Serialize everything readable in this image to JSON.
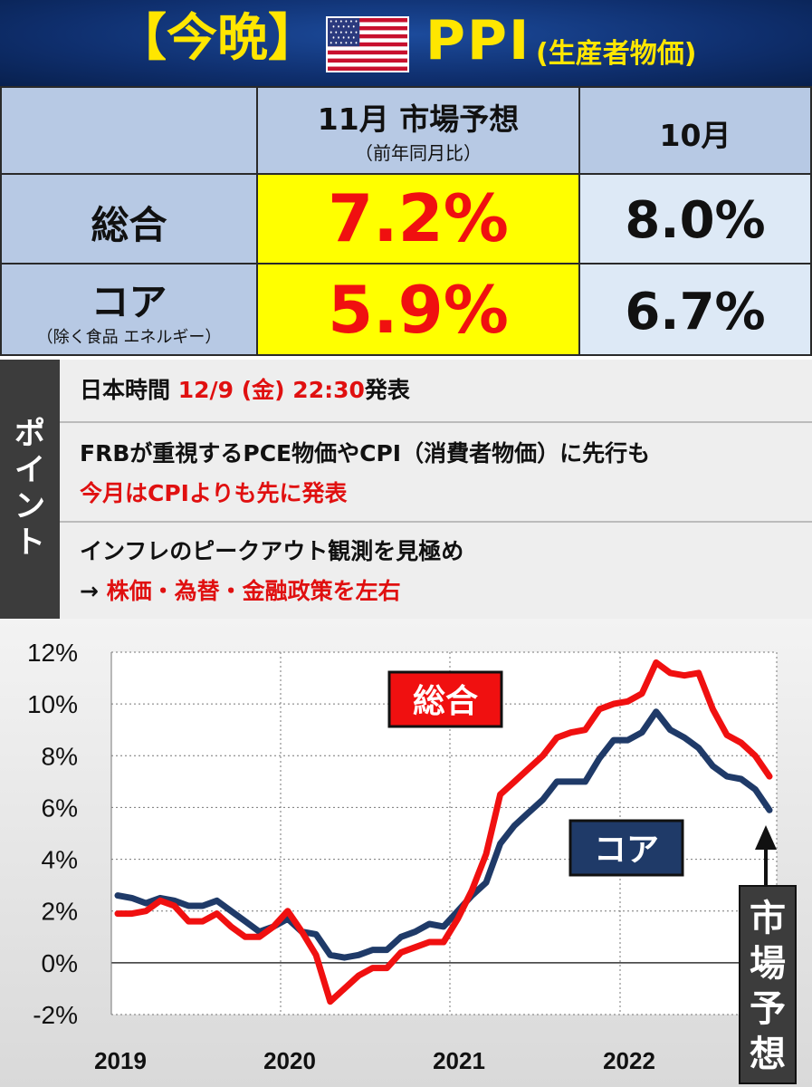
{
  "header": {
    "bracket_title": "【今晩】",
    "title": "PPI",
    "subtitle": "(生産者物価)",
    "flag_icon": "us-flag-icon"
  },
  "table": {
    "col_forecast_title": "11月 市場予想",
    "col_forecast_sub": "（前年同月比）",
    "col_prev_title": "10月",
    "rows": [
      {
        "label": "総合",
        "sublabel": "",
        "forecast": "7.2%",
        "previous": "8.0%"
      },
      {
        "label": "コア",
        "sublabel": "（除く食品 エネルギー）",
        "forecast": "5.9%",
        "previous": "6.7%"
      }
    ]
  },
  "points": {
    "side_label": "ポイント",
    "row1": {
      "a": "日本時間 ",
      "b": "12/9 (金) 22:30",
      "c": "発表"
    },
    "row2": {
      "line1": "FRBが重視するPCE物価やCPI（消費者物価）に先行も",
      "line2": "今月はCPIよりも先に発表"
    },
    "row3": {
      "line1": "インフレのピークアウト観測を見極め",
      "arrow": "→ ",
      "line2": "株価・為替・金融政策を左右"
    }
  },
  "colors": {
    "headline": "#0f2f6e",
    "headline_text": "#ffe600",
    "series_total": "#f01010",
    "series_core": "#1f3a68",
    "highlight": "#ffff00",
    "table_header": "#b7c9e4",
    "table_light": "#dde9f6"
  },
  "chart_data": {
    "type": "line",
    "xlabel": "",
    "ylabel": "",
    "x_ticks": [
      "2019",
      "2020",
      "2021",
      "2022"
    ],
    "y_ticks": [
      "12%",
      "10%",
      "8%",
      "6%",
      "4%",
      "2%",
      "0%",
      "-2%"
    ],
    "ylim": [
      -2,
      12
    ],
    "grid": true,
    "callout": "市場予想",
    "series": [
      {
        "name": "総合",
        "values": [
          1.9,
          1.9,
          2.0,
          2.4,
          2.2,
          1.6,
          1.6,
          1.9,
          1.4,
          1.0,
          1.0,
          1.4,
          2.0,
          1.2,
          0.3,
          -1.5,
          -1.0,
          -0.5,
          -0.2,
          -0.2,
          0.4,
          0.6,
          0.8,
          0.8,
          1.7,
          2.8,
          4.2,
          6.5,
          7.0,
          7.5,
          8.0,
          8.7,
          8.9,
          9.0,
          9.8,
          10.0,
          10.1,
          10.4,
          11.6,
          11.2,
          11.1,
          11.2,
          9.8,
          8.8,
          8.5,
          8.0,
          7.2
        ]
      },
      {
        "name": "コア",
        "values": [
          2.6,
          2.5,
          2.3,
          2.5,
          2.4,
          2.2,
          2.2,
          2.4,
          2.0,
          1.6,
          1.2,
          1.4,
          1.7,
          1.2,
          1.1,
          0.3,
          0.2,
          0.3,
          0.5,
          0.5,
          1.0,
          1.2,
          1.5,
          1.4,
          2.0,
          2.6,
          3.1,
          4.6,
          5.3,
          5.8,
          6.3,
          7.0,
          7.0,
          7.0,
          7.9,
          8.6,
          8.6,
          8.9,
          9.7,
          9.0,
          8.7,
          8.3,
          7.6,
          7.2,
          7.1,
          6.7,
          5.9
        ]
      }
    ]
  }
}
